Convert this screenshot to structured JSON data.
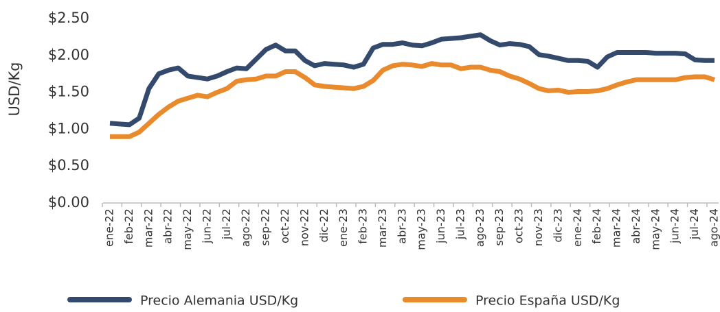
{
  "chart_data": {
    "type": "line",
    "y_label": "USD/Kg",
    "categories": [
      "ene-22",
      null,
      "feb-22",
      null,
      "mar-22",
      null,
      "abr-22",
      null,
      "may-22",
      null,
      "jun-22",
      null,
      "jul-22",
      null,
      "ago-22",
      null,
      "sep-22",
      null,
      "oct-22",
      null,
      "nov-22",
      null,
      "dic-22",
      null,
      "ene-23",
      null,
      "feb-23",
      null,
      "mar-23",
      null,
      "abr-23",
      null,
      "may-23",
      null,
      "jun-23",
      null,
      "jul-23",
      null,
      "ago-23",
      null,
      "sep-23",
      null,
      "oct-23",
      null,
      "nov-23",
      null,
      "dic-23",
      null,
      "ene-24",
      null,
      "feb-24",
      null,
      "mar-24",
      null,
      "abr-24",
      null,
      "may-24",
      null,
      "jun-24",
      null,
      "jul-24",
      null,
      "ago-24"
    ],
    "series": [
      {
        "name": "Precio Alemania USD/Kg",
        "color": "#344a6c",
        "values": [
          1.08,
          1.07,
          1.06,
          1.15,
          1.55,
          1.75,
          1.8,
          1.83,
          1.72,
          1.7,
          1.68,
          1.72,
          1.78,
          1.83,
          1.82,
          1.95,
          2.08,
          2.14,
          2.06,
          2.06,
          1.93,
          1.86,
          1.89,
          1.88,
          1.87,
          1.84,
          1.88,
          2.1,
          2.15,
          2.15,
          2.17,
          2.14,
          2.13,
          2.17,
          2.22,
          2.23,
          2.24,
          2.26,
          2.28,
          2.2,
          2.14,
          2.16,
          2.15,
          2.12,
          2.01,
          1.99,
          1.96,
          1.93,
          1.93,
          1.92,
          1.84,
          1.98,
          2.04,
          2.04,
          2.04,
          2.04,
          2.03,
          2.03,
          2.03,
          2.02,
          1.94,
          1.93,
          1.93
        ]
      },
      {
        "name": "Precio España USD/Kg",
        "color": "#e98a2c",
        "values": [
          0.9,
          0.9,
          0.9,
          0.96,
          1.08,
          1.2,
          1.3,
          1.38,
          1.42,
          1.46,
          1.44,
          1.5,
          1.55,
          1.65,
          1.67,
          1.68,
          1.72,
          1.72,
          1.78,
          1.78,
          1.7,
          1.6,
          1.58,
          1.57,
          1.56,
          1.55,
          1.58,
          1.66,
          1.8,
          1.86,
          1.88,
          1.87,
          1.85,
          1.89,
          1.87,
          1.87,
          1.82,
          1.84,
          1.84,
          1.8,
          1.78,
          1.72,
          1.68,
          1.62,
          1.55,
          1.52,
          1.53,
          1.5,
          1.51,
          1.51,
          1.52,
          1.55,
          1.6,
          1.64,
          1.67,
          1.67,
          1.67,
          1.67,
          1.67,
          1.7,
          1.71,
          1.71,
          1.67
        ]
      }
    ],
    "ylim": [
      0,
      2.5
    ],
    "yticks": [
      {
        "value": 0,
        "label": "$0.00"
      },
      {
        "value": 0.5,
        "label": "$0.50"
      },
      {
        "value": 1,
        "label": "$1.00"
      },
      {
        "value": 1.5,
        "label": "$1.50"
      },
      {
        "value": 2,
        "label": "$2.00"
      },
      {
        "value": 2.5,
        "label": "$2.50"
      }
    ],
    "grid": false,
    "legend": "bottom"
  }
}
